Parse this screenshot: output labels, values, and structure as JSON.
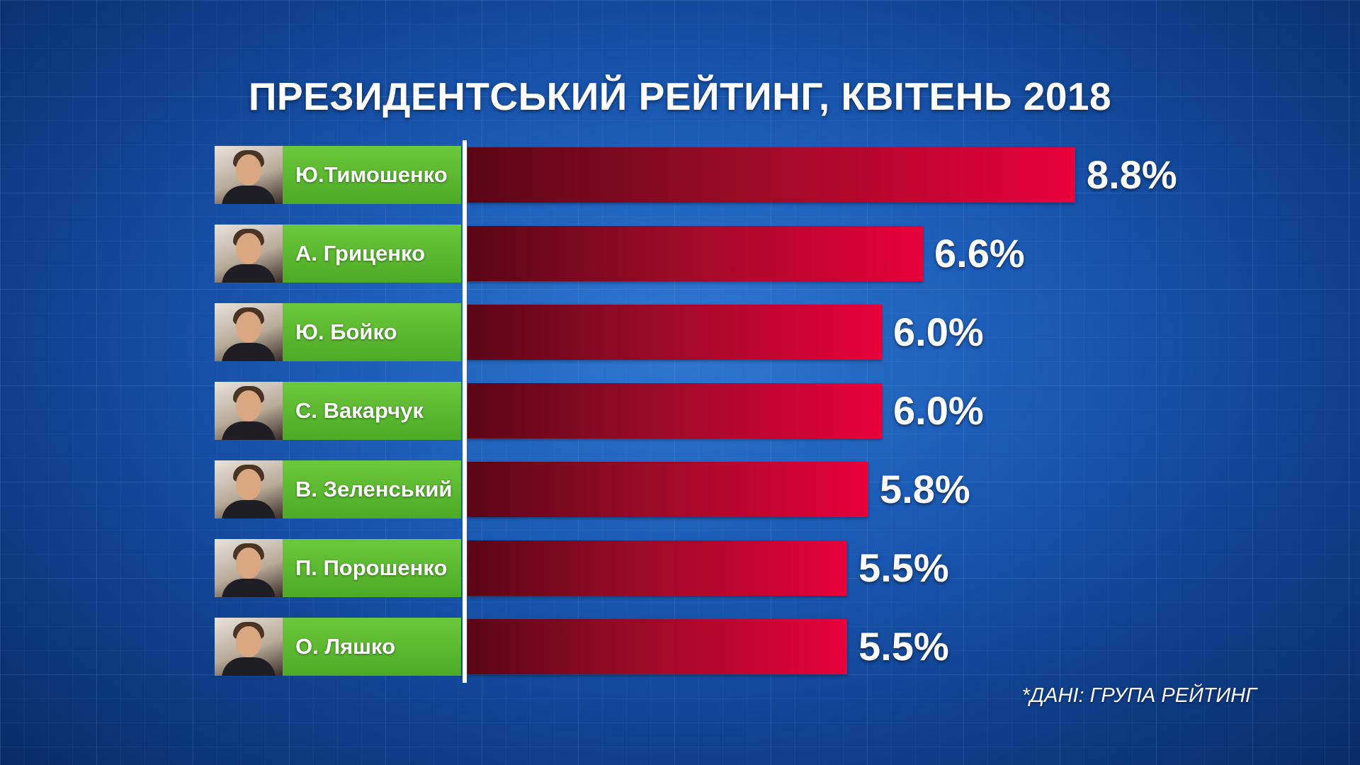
{
  "title": "ПРЕЗИДЕНТСЬКИЙ РЕЙТИНГ, КВІТЕНЬ 2018",
  "source": "*ДАНІ: ГРУПА РЕЙТИНГ",
  "colors": {
    "label_bg": "#4caa26",
    "bar_start": "#5a0616",
    "bar_end": "#e8003a",
    "background": "#1c5cb8"
  },
  "chart_data": {
    "type": "bar",
    "orientation": "horizontal",
    "title": "ПРЕЗИДЕНТСЬКИЙ РЕЙТИНГ, КВІТЕНЬ 2018",
    "categories": [
      "Ю.Тимошенко",
      "А. Гриценко",
      "Ю. Бойко",
      "С. Вакарчук",
      "В. Зеленський",
      "П. Порошенко",
      "О. Ляшко"
    ],
    "values": [
      8.8,
      6.6,
      6.0,
      6.0,
      5.8,
      5.5,
      5.5
    ],
    "value_labels": [
      "8.8%",
      "6.6%",
      "6.0%",
      "6.0%",
      "5.8%",
      "5.5%",
      "5.5%"
    ],
    "unit": "%",
    "xlim": [
      0,
      8.8
    ],
    "grid": false,
    "legend": "none"
  }
}
